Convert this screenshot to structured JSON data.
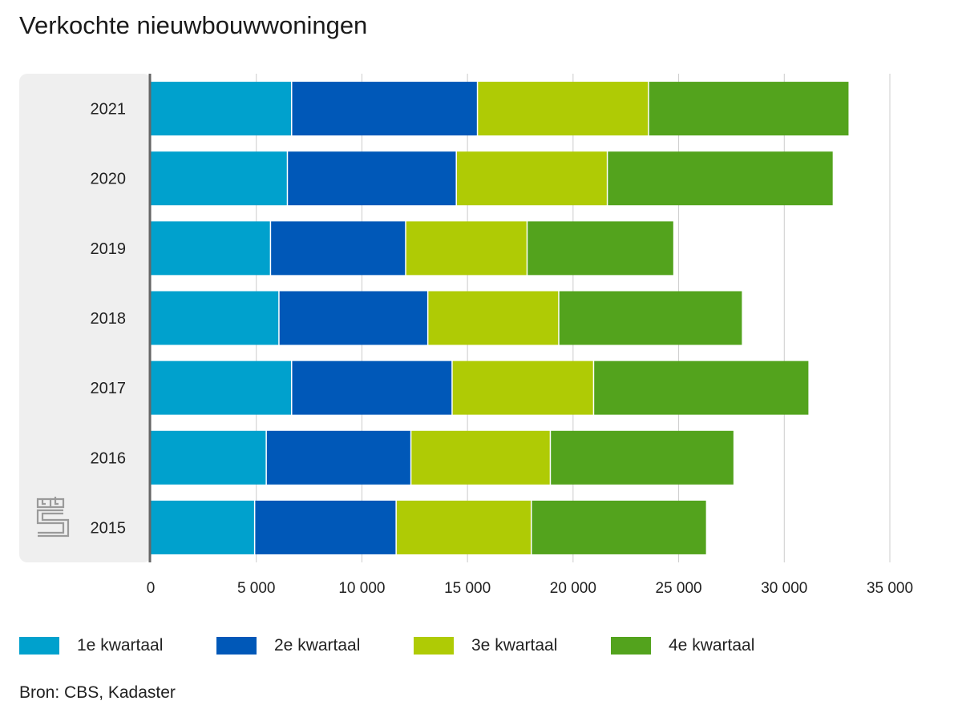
{
  "title": "Verkochte nieuwbouwwoningen",
  "source": "Bron: CBS, Kadaster",
  "logo": "cbs-logo",
  "chart_data": {
    "type": "bar",
    "orientation": "horizontal",
    "stacked": true,
    "title": "Verkochte nieuwbouwwoningen",
    "categories": [
      "2021",
      "2020",
      "2019",
      "2018",
      "2017",
      "2016",
      "2015"
    ],
    "xlim": [
      0,
      35000
    ],
    "xticks": [
      0,
      5000,
      10000,
      15000,
      20000,
      25000,
      30000,
      35000
    ],
    "xtick_labels": [
      "0",
      "5 000",
      "10 000",
      "15 000",
      "20 000",
      "25 000",
      "30 000",
      "35 000"
    ],
    "grid": true,
    "legend_position": "bottom",
    "series": [
      {
        "name": "1e kwartaal",
        "color": "#00a1cd",
        "values": [
          6700,
          6500,
          5700,
          6100,
          6700,
          5500,
          4950
        ]
      },
      {
        "name": "2e kwartaal",
        "color": "#0058b8",
        "values": [
          8800,
          8000,
          6400,
          7050,
          7600,
          6850,
          6700
        ]
      },
      {
        "name": "3e kwartaal",
        "color": "#afcb05",
        "values": [
          8100,
          7150,
          5750,
          6200,
          6700,
          6600,
          6400
        ]
      },
      {
        "name": "4e kwartaal",
        "color": "#53a31d",
        "values": [
          9500,
          10700,
          6950,
          8700,
          10200,
          8700,
          8300
        ]
      }
    ]
  }
}
